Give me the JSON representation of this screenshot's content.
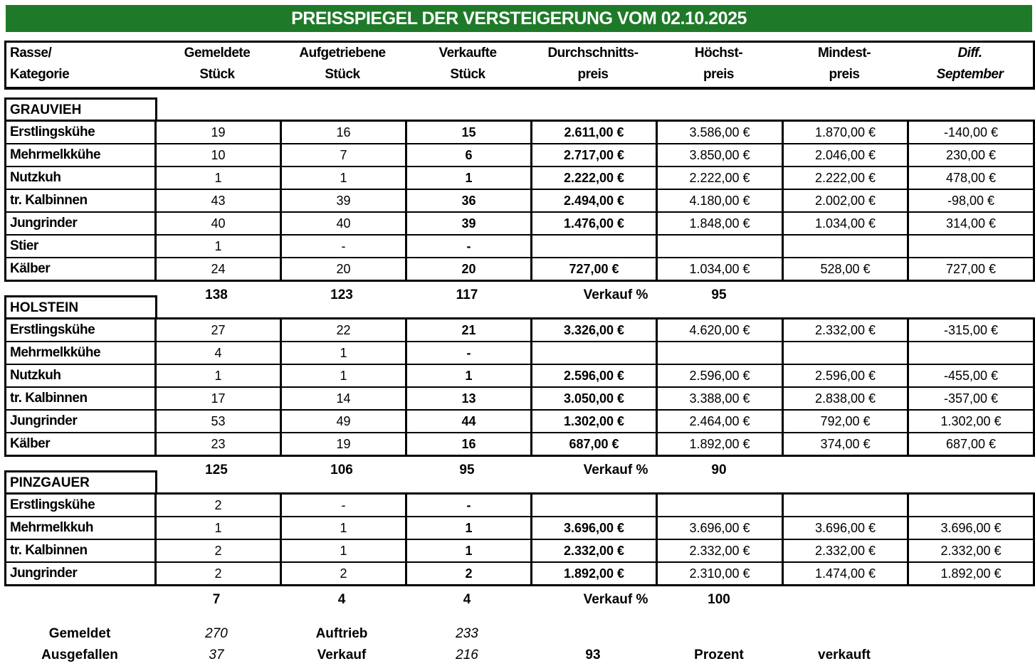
{
  "title": "PREISSPIEGEL DER VERSTEIGERUNG VOM 02.10.2025",
  "headers": [
    {
      "l1": "Rasse/",
      "l2": "Kategorie"
    },
    {
      "l1": "Gemeldete",
      "l2": "Stück"
    },
    {
      "l1": "Aufgetriebene",
      "l2": "Stück"
    },
    {
      "l1": "Verkaufte",
      "l2": "Stück"
    },
    {
      "l1": "Durchschnitts-",
      "l2": "preis"
    },
    {
      "l1": "Höchst-",
      "l2": "preis"
    },
    {
      "l1": "Mindest-",
      "l2": "preis"
    },
    {
      "l1": "Diff.",
      "l2": "September"
    }
  ],
  "sections": [
    {
      "name": "GRAUVIEH",
      "rows": [
        [
          "Erstlingskühe",
          "19",
          "16",
          "15",
          "2.611,00 €",
          "3.586,00 €",
          "1.870,00 €",
          "-140,00 €"
        ],
        [
          "Mehrmelkkühe",
          "10",
          "7",
          "6",
          "2.717,00 €",
          "3.850,00 €",
          "2.046,00 €",
          "230,00 €"
        ],
        [
          "Nutzkuh",
          "1",
          "1",
          "1",
          "2.222,00 €",
          "2.222,00 €",
          "2.222,00 €",
          "478,00 €"
        ],
        [
          "tr. Kalbinnen",
          "43",
          "39",
          "36",
          "2.494,00 €",
          "4.180,00 €",
          "2.002,00 €",
          "-98,00 €"
        ],
        [
          "Jungrinder",
          "40",
          "40",
          "39",
          "1.476,00 €",
          "1.848,00 €",
          "1.034,00 €",
          "314,00 €"
        ],
        [
          "Stier",
          "1",
          "-",
          "-",
          "",
          "",
          "",
          ""
        ],
        [
          "Kälber",
          "24",
          "20",
          "20",
          "727,00 €",
          "1.034,00 €",
          "528,00 €",
          "727,00 €"
        ]
      ],
      "totals": {
        "gemeldet": "138",
        "aufgetrieben": "123",
        "verkauft": "117",
        "label": "Verkauf %",
        "percent": "95"
      }
    },
    {
      "name": "HOLSTEIN",
      "rows": [
        [
          "Erstlingskühe",
          "27",
          "22",
          "21",
          "3.326,00 €",
          "4.620,00 €",
          "2.332,00 €",
          "-315,00 €"
        ],
        [
          "Mehrmelkkühe",
          "4",
          "1",
          "-",
          "",
          "",
          "",
          ""
        ],
        [
          "Nutzkuh",
          "1",
          "1",
          "1",
          "2.596,00 €",
          "2.596,00 €",
          "2.596,00 €",
          "-455,00 €"
        ],
        [
          "tr. Kalbinnen",
          "17",
          "14",
          "13",
          "3.050,00 €",
          "3.388,00 €",
          "2.838,00 €",
          "-357,00 €"
        ],
        [
          "Jungrinder",
          "53",
          "49",
          "44",
          "1.302,00 €",
          "2.464,00 €",
          "792,00 €",
          "1.302,00 €"
        ],
        [
          "Kälber",
          "23",
          "19",
          "16",
          "687,00 €",
          "1.892,00 €",
          "374,00 €",
          "687,00 €"
        ]
      ],
      "totals": {
        "gemeldet": "125",
        "aufgetrieben": "106",
        "verkauft": "95",
        "label": "Verkauf %",
        "percent": "90"
      }
    },
    {
      "name": "PINZGAUER",
      "rows": [
        [
          "Erstlingskühe",
          "2",
          "-",
          "-",
          "",
          "",
          "",
          ""
        ],
        [
          "Mehrmelkkuh",
          "1",
          "1",
          "1",
          "3.696,00 €",
          "3.696,00 €",
          "3.696,00 €",
          "3.696,00 €"
        ],
        [
          "tr. Kalbinnen",
          "2",
          "1",
          "1",
          "2.332,00 €",
          "2.332,00 €",
          "2.332,00 €",
          "2.332,00 €"
        ],
        [
          "Jungrinder",
          "2",
          "2",
          "2",
          "1.892,00 €",
          "2.310,00 €",
          "1.474,00 €",
          "1.892,00 €"
        ]
      ],
      "totals": {
        "gemeldet": "7",
        "aufgetrieben": "4",
        "verkauft": "4",
        "label": "Verkauf %",
        "percent": "100"
      }
    }
  ],
  "summary": {
    "gemeldet_label": "Gemeldet",
    "gemeldet": "270",
    "auftrieb_label": "Auftrieb",
    "auftrieb": "233",
    "ausgefallen_label": "Ausgefallen",
    "ausgefallen": "37",
    "verkauf_label": "Verkauf",
    "verkauf": "216",
    "percent": "93",
    "prozent_label": "Prozent",
    "verkauft_label": "verkauft"
  },
  "colors": {
    "title_bg": "#1e7a28",
    "title_text": "#ffffff",
    "border": "#000000"
  }
}
